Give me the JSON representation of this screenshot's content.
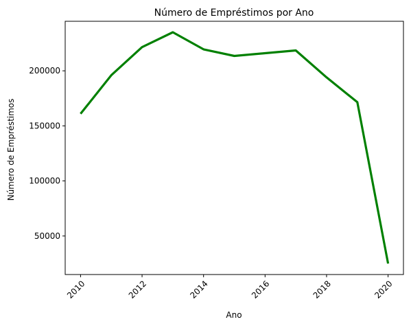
{
  "chart_data": {
    "type": "line",
    "title": "Número de Empréstimos por Ano",
    "xlabel": "Ano",
    "ylabel": "Número de Empréstimos",
    "x": [
      2010,
      2011,
      2012,
      2013,
      2014,
      2015,
      2016,
      2017,
      2018,
      2019,
      2020
    ],
    "series": [
      {
        "values": [
          161000,
          196000,
          221500,
          235000,
          219500,
          213500,
          216000,
          218500,
          194000,
          171500,
          25000
        ],
        "color": "#008000"
      }
    ],
    "xlim": [
      2009.5,
      2020.5
    ],
    "ylim": [
      15000,
      245000
    ],
    "xticks": [
      2010,
      2012,
      2014,
      2016,
      2018,
      2020
    ],
    "yticks": [
      50000,
      100000,
      150000,
      200000
    ],
    "xtick_rotation": 45,
    "grid": false,
    "legend": "none"
  }
}
